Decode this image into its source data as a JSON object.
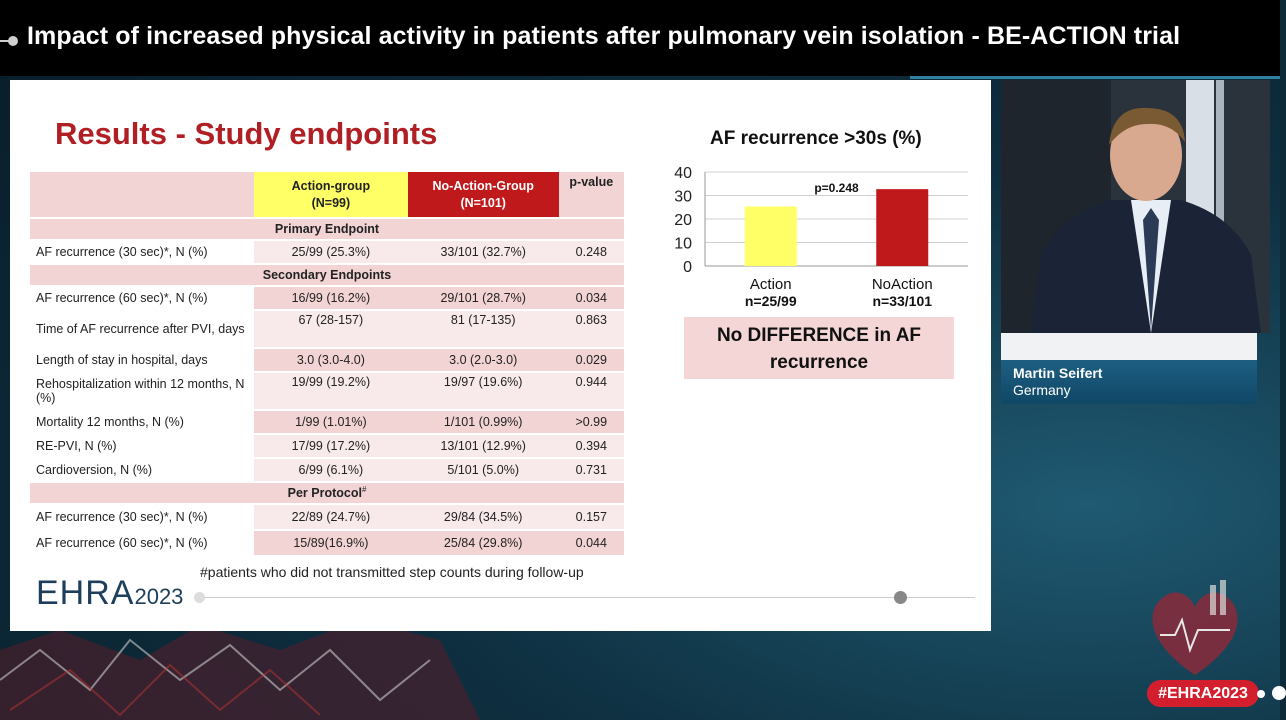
{
  "broadcast": {
    "title": "Impact of increased physical activity in patients after pulmonary vein isolation - BE-ACTION trial",
    "hashtag": "#EHRA2023",
    "speaker_name": "Martin Seifert",
    "speaker_country": "Germany"
  },
  "slide": {
    "title": "Results - Study endpoints",
    "table": {
      "col_action": "Action-group",
      "col_action_n": "(N=99)",
      "col_noaction": "No-Action-Group",
      "col_noaction_n": "(N=101)",
      "col_p": "p-value",
      "primary_header": "Primary Endpoint",
      "secondary_header": "Secondary Endpoints",
      "per_protocol_header": "Per Protocol",
      "per_protocol_mark": "#",
      "primary": [
        {
          "label": "AF recurrence (30 sec)*, N (%)",
          "action": "25/99 (25.3%)",
          "noaction": "33/101 (32.7%)",
          "p": "0.248"
        }
      ],
      "secondary": [
        {
          "label": "AF recurrence (60 sec)*, N (%)",
          "action": "16/99 (16.2%)",
          "noaction": "29/101 (28.7%)",
          "p": "0.034"
        },
        {
          "label": "Time of AF recurrence after PVI, days",
          "action": "67 (28-157)",
          "noaction": "81 (17-135)",
          "p": "0.863"
        },
        {
          "label": "Length of stay in hospital, days",
          "action": "3.0 (3.0-4.0)",
          "noaction": "3.0 (2.0-3.0)",
          "p": "0.029"
        },
        {
          "label": "Rehospitalization within 12 months, N (%)",
          "action": "19/99 (19.2%)",
          "noaction": "19/97 (19.6%)",
          "p": "0.944"
        },
        {
          "label": "Mortality 12 months, N (%)",
          "action": "1/99 (1.01%)",
          "noaction": "1/101 (0.99%)",
          "p": ">0.99"
        },
        {
          "label": "RE-PVI, N (%)",
          "action": "17/99 (17.2%)",
          "noaction": "13/101 (12.9%)",
          "p": "0.394"
        },
        {
          "label": "Cardioversion, N (%)",
          "action": "6/99 (6.1%)",
          "noaction": "5/101 (5.0%)",
          "p": "0.731"
        }
      ],
      "per_protocol": [
        {
          "label": "AF recurrence (30 sec)*, N (%)",
          "action": "22/89 (24.7%)",
          "noaction": "29/84 (34.5%)",
          "p": "0.157"
        },
        {
          "label": "AF recurrence (60 sec)*, N (%)",
          "action": "15/89(16.9%)",
          "noaction": "25/84 (29.8%)",
          "p": "0.044"
        }
      ]
    },
    "footnote": "#patients who did not transmitted step counts during follow-up",
    "logo_main": "EHRA",
    "logo_year": "2023",
    "callout_line1": "No DIFFERENCE in AF",
    "callout_line2": "recurrence"
  },
  "chart_data": {
    "type": "bar",
    "title": "AF recurrence >30s (%)",
    "categories": [
      "Action",
      "NoAction"
    ],
    "category_sublabels": [
      "n=25/99",
      "n=33/101"
    ],
    "values": [
      25.3,
      32.7
    ],
    "colors": [
      "#ffff66",
      "#c0191b"
    ],
    "ylim": [
      0,
      40
    ],
    "yticks": [
      0,
      10,
      20,
      30,
      40
    ],
    "annotation": "p=0.248",
    "grid": true
  }
}
